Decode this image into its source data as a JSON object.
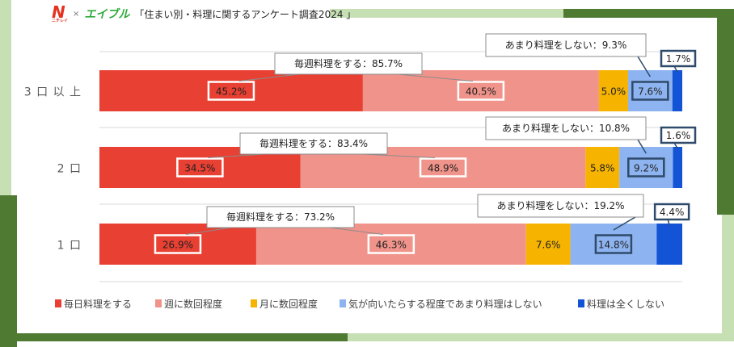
{
  "header": {
    "logo_primary": "N",
    "logo_primary_sub": "ニチレイ",
    "times": "×",
    "logo_secondary": "エイブル",
    "title": "「住まい別・料理に関するアンケート調査2024 」"
  },
  "colors": {
    "frame_dark": "#4e7a32",
    "frame_light": "#c6e0b4",
    "series": [
      "#e84032",
      "#f0938a",
      "#f6b400",
      "#8db4f0",
      "#1353d6"
    ],
    "callout_border": "#2f4a6a",
    "label_box": "#ffffff"
  },
  "chart_data": {
    "type": "bar",
    "orientation": "horizontal",
    "stacked": true,
    "x_range": [
      0,
      100
    ],
    "grid": true,
    "legend_position": "bottom",
    "categories": [
      "3口以上",
      "2口",
      "1口"
    ],
    "category_labels": [
      "3 口 以 上",
      "2 口",
      "1 口"
    ],
    "series": [
      {
        "name": "毎日料理をする",
        "values": [
          45.2,
          34.5,
          26.9
        ],
        "labels": [
          "45.2%",
          "34.5%",
          "26.9%"
        ]
      },
      {
        "name": "週に数回程度",
        "values": [
          40.5,
          48.9,
          46.3
        ],
        "labels": [
          "40.5%",
          "48.9%",
          "46.3%"
        ]
      },
      {
        "name": "月に数回程度",
        "values": [
          5.0,
          5.8,
          7.6
        ],
        "labels": [
          "5.0%",
          "5.8%",
          "7.6%"
        ]
      },
      {
        "name": "気が向いたらする程度であまり料理はしない",
        "values": [
          7.6,
          9.2,
          14.8
        ],
        "labels": [
          "7.6%",
          "9.2%",
          "14.8%"
        ]
      },
      {
        "name": "料理は全くしない",
        "values": [
          1.7,
          1.6,
          4.4
        ],
        "labels": [
          "1.7%",
          "1.6%",
          "4.4%"
        ]
      }
    ],
    "callouts_weekly": [
      "毎週料理をする：85.7%",
      "毎週料理をする：83.4%",
      "毎週料理をする：73.2%"
    ],
    "callouts_rarely": [
      "あまり料理をしない：9.3%",
      "あまり料理をしない：10.8%",
      "あまり料理をしない：19.2%"
    ]
  }
}
